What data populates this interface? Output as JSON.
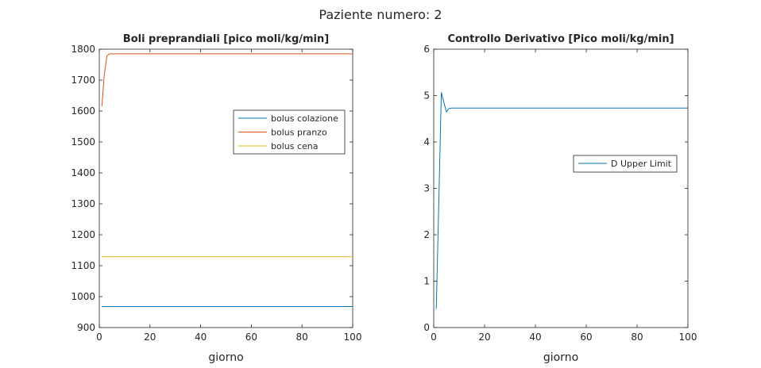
{
  "figure": {
    "suptitle": "Paziente numero: 2"
  },
  "chart_data": [
    {
      "type": "line",
      "title": "Boli preprandiali [pico moli/kg/min]",
      "xlabel": "giorno",
      "ylabel": "",
      "xlim": [
        0,
        100
      ],
      "ylim": [
        900,
        1800
      ],
      "xticks": [
        0,
        20,
        40,
        60,
        80,
        100
      ],
      "yticks": [
        900,
        1000,
        1100,
        1200,
        1300,
        1400,
        1500,
        1600,
        1700,
        1800
      ],
      "grid": false,
      "legend": "right",
      "series": [
        {
          "name": "bolus colazione",
          "color": "#0072BD",
          "x": [
            1,
            2,
            100
          ],
          "y": [
            968,
            968,
            968
          ]
        },
        {
          "name": "bolus pranzo",
          "color": "#D95319",
          "x": [
            1,
            2,
            3,
            4,
            5,
            100
          ],
          "y": [
            1615,
            1720,
            1778,
            1785,
            1785,
            1785
          ]
        },
        {
          "name": "bolus cena",
          "color": "#EDB120",
          "x": [
            1,
            2,
            100
          ],
          "y": [
            1129,
            1129,
            1129
          ]
        }
      ]
    },
    {
      "type": "line",
      "title": "Controllo Derivativo [Pico moli/kg/min]",
      "xlabel": "giorno",
      "ylabel": "",
      "xlim": [
        0,
        100
      ],
      "ylim": [
        0,
        6
      ],
      "xticks": [
        0,
        20,
        40,
        60,
        80,
        100
      ],
      "yticks": [
        0,
        1,
        2,
        3,
        4,
        5,
        6
      ],
      "grid": false,
      "legend": "right",
      "series": [
        {
          "name": "D Upper Limit",
          "color": "#0072BD",
          "x": [
            1,
            2,
            3,
            4,
            5,
            6,
            7,
            8,
            100
          ],
          "y": [
            0.4,
            2.7,
            5.07,
            4.85,
            4.65,
            4.72,
            4.73,
            4.73,
            4.73
          ]
        }
      ]
    }
  ]
}
